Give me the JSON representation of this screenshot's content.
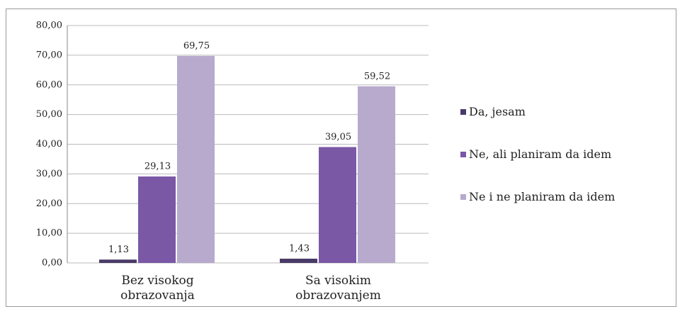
{
  "chart_data": {
    "type": "bar",
    "categories": [
      "Bez visokog obrazovanja",
      "Sa visokim obrazovanjem"
    ],
    "series": [
      {
        "name": "Da, jesam",
        "color": "#4a3a68",
        "values": [
          1.13,
          1.43
        ],
        "value_labels": [
          "1,13",
          "1,43"
        ]
      },
      {
        "name": "Ne, ali planiram da idem",
        "color": "#7a58a6",
        "values": [
          29.13,
          39.05
        ],
        "value_labels": [
          "29,13",
          "39,05"
        ]
      },
      {
        "name": "Ne i  ne planiram da idem",
        "color": "#b7aacd",
        "values": [
          69.75,
          59.52
        ],
        "value_labels": [
          "69,75",
          "59,52"
        ]
      }
    ],
    "ylim": [
      0,
      80
    ],
    "yticks": [
      {
        "value": 0,
        "label": "0,00"
      },
      {
        "value": 10,
        "label": "10,00"
      },
      {
        "value": 20,
        "label": "20,00"
      },
      {
        "value": 30,
        "label": "30,00"
      },
      {
        "value": 40,
        "label": "40,00"
      },
      {
        "value": 50,
        "label": "50,00"
      },
      {
        "value": 60,
        "label": "60,00"
      },
      {
        "value": 70,
        "label": "70,00"
      },
      {
        "value": 80,
        "label": "80,00"
      }
    ],
    "grid": true,
    "legend": "right"
  }
}
